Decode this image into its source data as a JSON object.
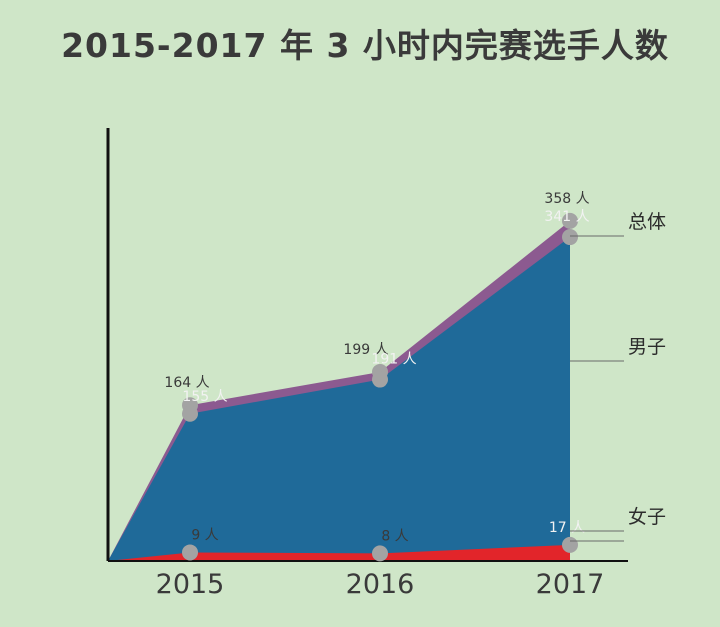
{
  "chart_data": {
    "type": "area",
    "title": "2015-2017 年 3 小时内完赛选手人数",
    "categories": [
      "2015",
      "2016",
      "2017"
    ],
    "series": [
      {
        "name": "总体",
        "values": [
          164,
          199,
          358
        ],
        "labels": [
          "164 人",
          "199 人",
          "358 人"
        ],
        "color": "#8c5a90"
      },
      {
        "name": "男子",
        "values": [
          155,
          191,
          341
        ],
        "labels": [
          "155 人",
          "191 人",
          "341 人"
        ],
        "color": "#1f6a99"
      },
      {
        "name": "女子",
        "values": [
          9,
          8,
          17
        ],
        "labels": [
          "9 人",
          "8 人",
          "17 人"
        ],
        "color": "#e2252a"
      }
    ],
    "ylim": [
      0,
      400
    ],
    "grid": false,
    "legend": "right",
    "colors": {
      "background": "#cfe6c8",
      "marker": "#a3a3a3",
      "axis": "#111111",
      "text": "#3a3a3a"
    }
  }
}
